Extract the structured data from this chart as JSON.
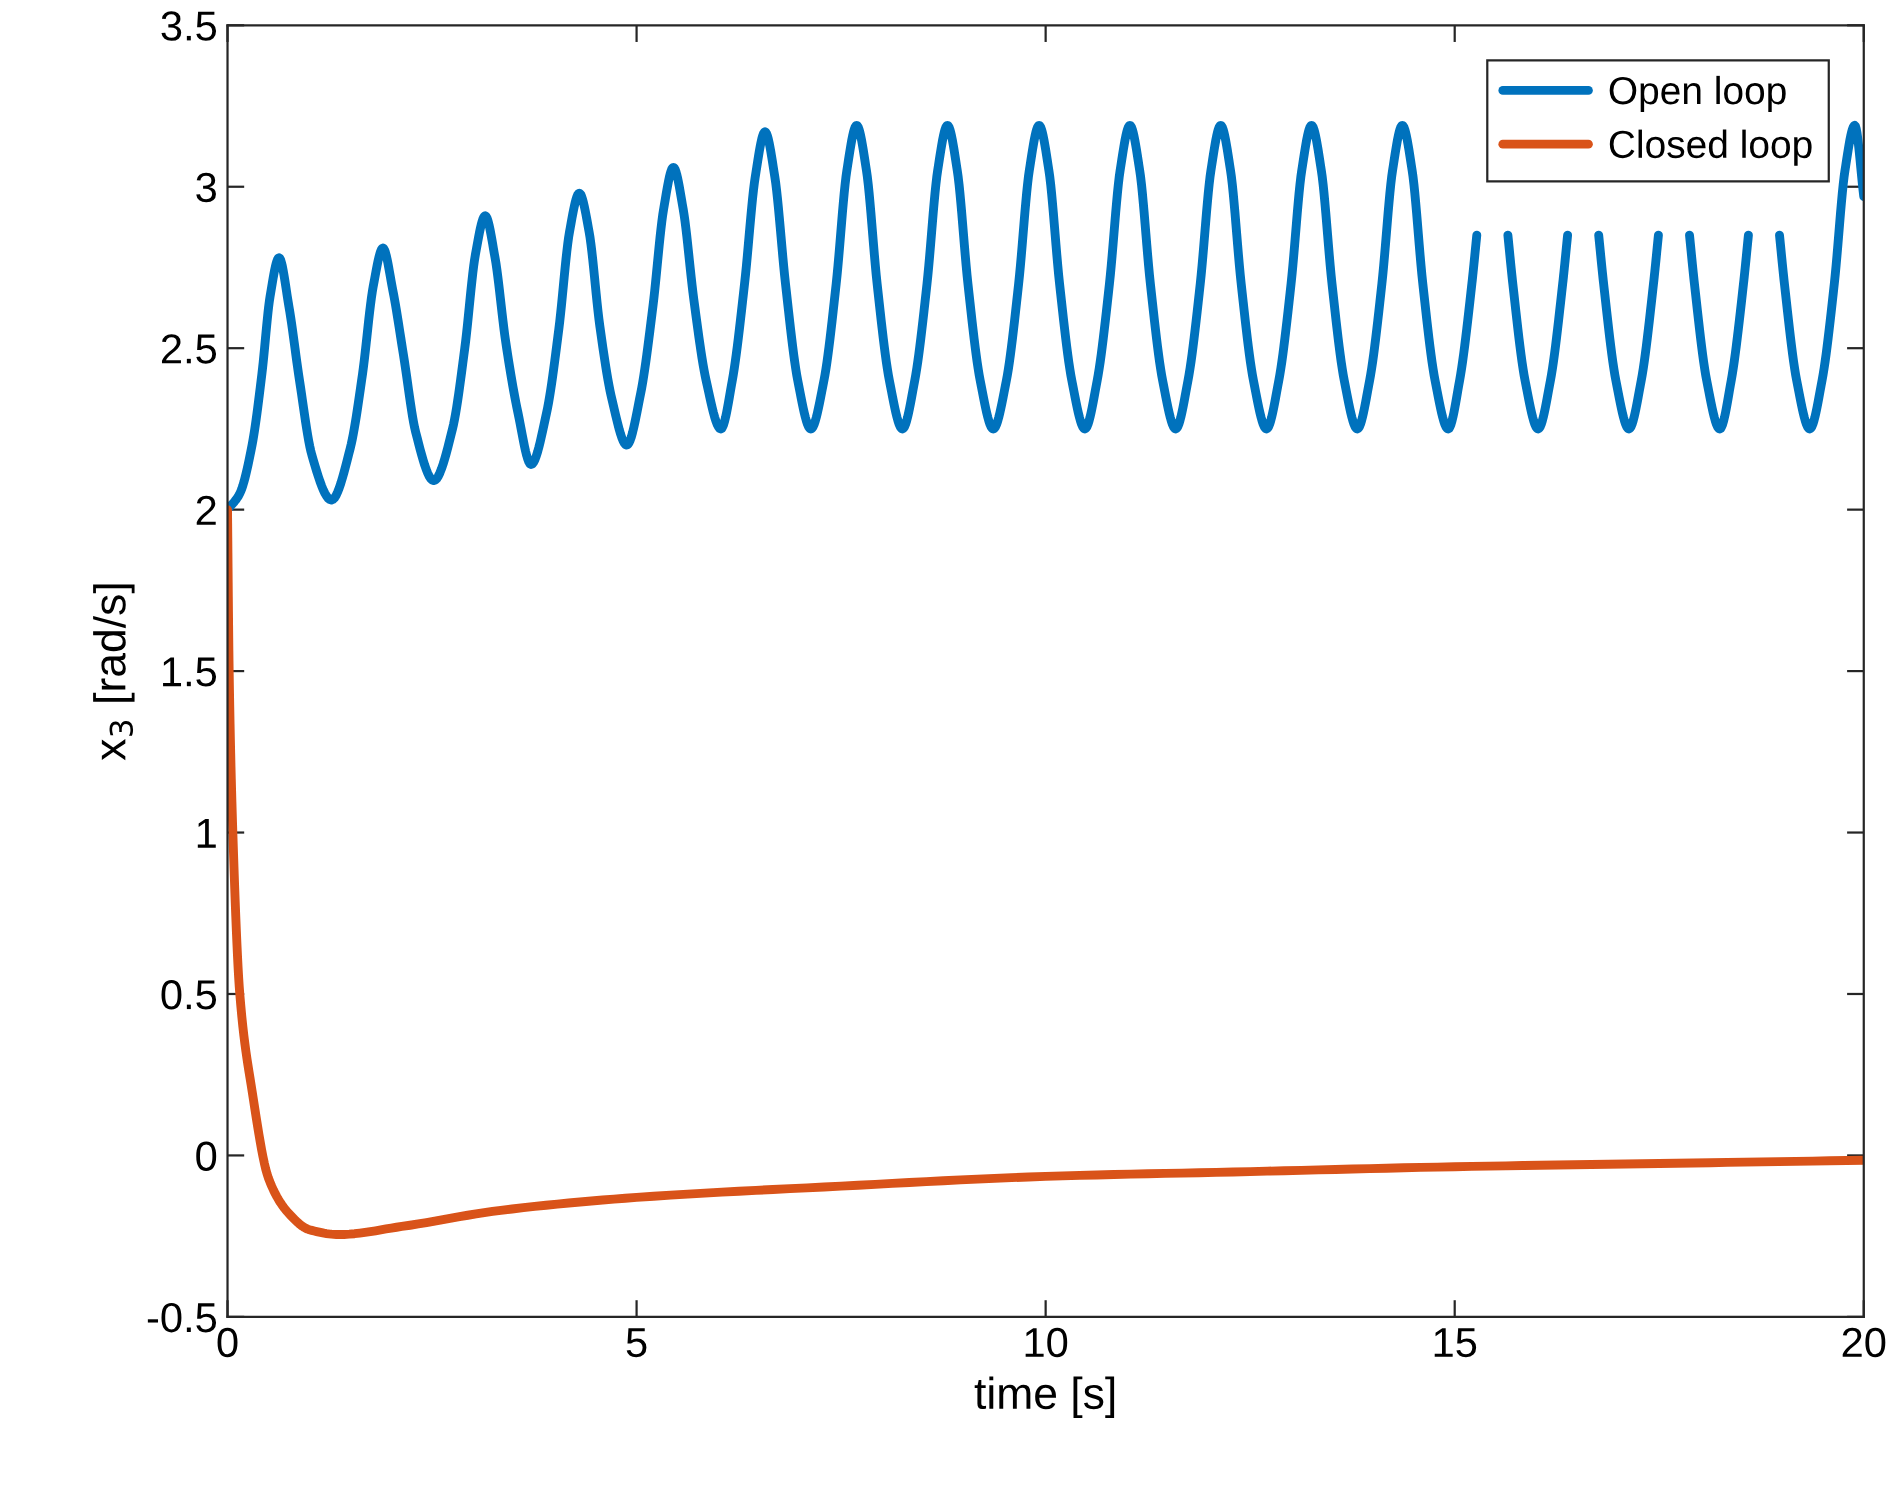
{
  "chart_data": {
    "type": "line",
    "xlabel": "time [s]",
    "ylabel": "x$_{3}$ [rad/s]",
    "xlim": [
      0,
      20
    ],
    "xticks": [
      0,
      5,
      10,
      15,
      20
    ],
    "ylim": [
      -0.5,
      3.5
    ],
    "yticks": [
      -0.5,
      0,
      0.5,
      1,
      1.5,
      2,
      2.5,
      3,
      3.5
    ],
    "grid": false,
    "legend": "top right",
    "line_style": "solid",
    "marker": "none",
    "series": [
      {
        "name": "Open loop",
        "color": "#0072bd",
        "x": [
          0,
          0.15,
          0.3,
          0.42,
          0.52,
          0.63,
          0.75,
          0.88,
          1.03,
          1.27,
          1.5,
          1.65,
          1.78,
          1.9,
          2.02,
          2.15,
          2.3,
          2.52,
          2.75,
          2.9,
          3.03,
          3.15,
          3.27,
          3.4,
          3.55,
          3.71,
          3.9,
          4.05,
          4.18,
          4.3,
          4.42,
          4.55,
          4.7,
          4.88,
          5.05,
          5.2,
          5.33,
          5.45,
          5.57,
          5.7,
          5.85,
          6.03,
          6.17,
          6.32,
          6.45,
          6.57,
          6.69,
          6.82,
          6.97,
          7.13,
          7.29,
          7.44,
          7.57,
          7.69,
          7.81,
          7.94,
          8.09,
          8.25,
          8.4,
          8.55,
          8.68,
          8.8,
          8.92,
          9.05,
          9.2,
          9.36,
          9.52,
          9.67,
          9.8,
          9.92,
          10.04,
          10.17,
          10.32,
          10.48,
          10.63,
          10.78,
          10.91,
          11.03,
          11.15,
          11.28,
          11.43,
          11.59,
          11.74,
          11.89,
          12.02,
          12.14,
          12.26,
          12.39,
          12.54,
          12.7,
          12.85,
          13.0,
          13.13,
          13.25,
          13.37,
          13.5,
          13.65,
          13.81,
          13.96,
          14.11,
          14.24,
          14.36,
          14.48,
          14.61,
          14.76,
          14.92,
          15.06,
          15.21,
          15.27,
          15.46,
          15.65,
          15.71,
          15.86,
          16.02,
          16.17,
          16.32,
          16.38,
          16.57,
          16.76,
          16.82,
          16.97,
          17.13,
          17.28,
          17.43,
          17.49,
          17.68,
          17.87,
          17.93,
          18.08,
          18.24,
          18.38,
          18.53,
          18.59,
          18.78,
          18.97,
          19.03,
          19.18,
          19.34,
          19.49,
          19.64,
          19.77,
          19.89,
          20
        ],
        "values": [
          2.0,
          2.05,
          2.2,
          2.42,
          2.66,
          2.78,
          2.63,
          2.4,
          2.17,
          2.03,
          2.19,
          2.42,
          2.69,
          2.81,
          2.68,
          2.48,
          2.24,
          2.09,
          2.25,
          2.5,
          2.79,
          2.91,
          2.78,
          2.52,
          2.3,
          2.14,
          2.3,
          2.56,
          2.86,
          2.98,
          2.86,
          2.57,
          2.34,
          2.2,
          2.36,
          2.63,
          2.93,
          3.06,
          2.93,
          2.65,
          2.4,
          2.25,
          2.4,
          2.7,
          3.03,
          3.17,
          3.03,
          2.7,
          2.4,
          2.25,
          2.4,
          2.7,
          3.05,
          3.19,
          3.05,
          2.7,
          2.4,
          2.25,
          2.4,
          2.7,
          3.05,
          3.19,
          3.05,
          2.7,
          2.4,
          2.25,
          2.4,
          2.7,
          3.05,
          3.19,
          3.05,
          2.7,
          2.4,
          2.25,
          2.4,
          2.7,
          3.05,
          3.19,
          3.05,
          2.7,
          2.4,
          2.25,
          2.4,
          2.7,
          3.05,
          3.19,
          3.05,
          2.7,
          2.4,
          2.25,
          2.4,
          2.7,
          3.05,
          3.19,
          3.05,
          2.7,
          2.4,
          2.25,
          2.4,
          2.7,
          3.05,
          3.19,
          3.05,
          2.7,
          2.4,
          2.25,
          2.4,
          2.7,
          2.85,
          null,
          2.85,
          2.7,
          2.4,
          2.25,
          2.4,
          2.7,
          2.85,
          null,
          2.85,
          2.7,
          2.4,
          2.25,
          2.4,
          2.7,
          2.85,
          null,
          2.85,
          2.7,
          2.4,
          2.25,
          2.4,
          2.7,
          2.85,
          null,
          2.85,
          2.7,
          2.4,
          2.25,
          2.4,
          2.7,
          3.05,
          3.19,
          2.97
        ]
      },
      {
        "name": "Closed loop",
        "color": "#d95319",
        "x": [
          0,
          0.02,
          0.065,
          0.15,
          0.3,
          0.5,
          0.75,
          1.0,
          1.36,
          2.13,
          3.34,
          5,
          7.5,
          10,
          12.5,
          15,
          17.5,
          20
        ],
        "values": [
          2.0,
          1.5,
          1.0,
          0.5,
          0.2,
          -0.07,
          -0.18,
          -0.23,
          -0.245,
          -0.22,
          -0.17,
          -0.13,
          -0.095,
          -0.065,
          -0.05,
          -0.035,
          -0.025,
          -0.015
        ]
      }
    ]
  }
}
